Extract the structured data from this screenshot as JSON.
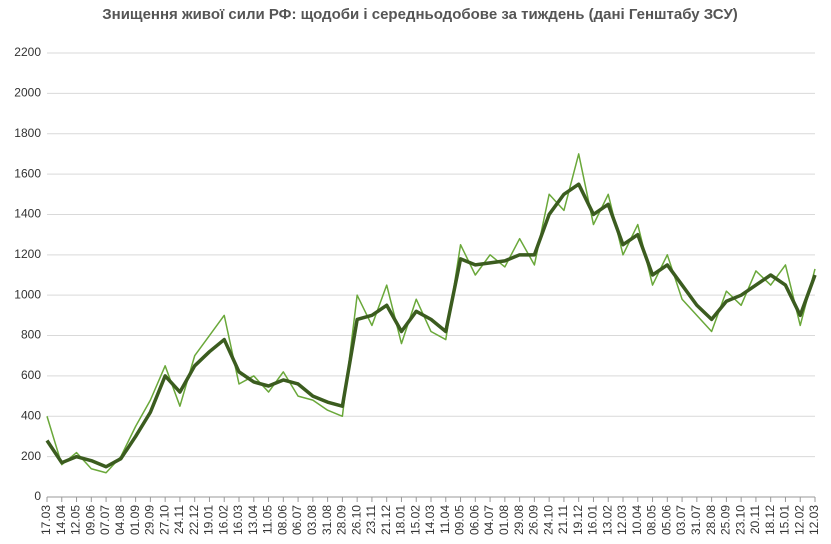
{
  "chart_data": {
    "type": "line",
    "title": "Знищення живої сили РФ: щодоби і середньодобове за тиждень (дані Генштабу ЗСУ)",
    "categories": [
      "17.03",
      "14.04",
      "12.05",
      "09.06",
      "07.07",
      "04.08",
      "01.09",
      "29.09",
      "27.10",
      "24.11",
      "22.12",
      "19.01",
      "16.02",
      "16.03",
      "13.04",
      "11.05",
      "08.06",
      "06.07",
      "03.08",
      "31.08",
      "28.09",
      "26.10",
      "23.11",
      "21.12",
      "18.01",
      "15.02",
      "14.03",
      "11.04",
      "09.05",
      "06.06",
      "04.07",
      "01.08",
      "29.08",
      "26.09",
      "24.10",
      "21.11",
      "19.12",
      "16.01",
      "13.02",
      "12.03",
      "10.04",
      "08.05",
      "05.06",
      "03.07",
      "31.07",
      "28.08",
      "25.09",
      "23.10",
      "20.11",
      "18.12",
      "15.01",
      "12.02",
      "12.03"
    ],
    "series": [
      {
        "color": "#6aa83a",
        "values": [
          400,
          160,
          220,
          140,
          120,
          200,
          350,
          480,
          650,
          450,
          700,
          800,
          900,
          560,
          600,
          520,
          620,
          500,
          480,
          430,
          400,
          1000,
          850,
          1050,
          760,
          980,
          820,
          780,
          1250,
          1100,
          1200,
          1140,
          1280,
          1150,
          1500,
          1420,
          1700,
          1350,
          1500,
          1200,
          1350,
          1050,
          1200,
          980,
          900,
          820,
          1020,
          950,
          1120,
          1050,
          1150,
          850,
          1130
        ]
      },
      {
        "color": "#3b5c1f",
        "values": [
          280,
          170,
          200,
          180,
          150,
          190,
          300,
          420,
          600,
          520,
          650,
          720,
          780,
          620,
          570,
          550,
          580,
          560,
          500,
          470,
          450,
          880,
          900,
          950,
          820,
          920,
          880,
          820,
          1180,
          1150,
          1160,
          1170,
          1200,
          1200,
          1400,
          1500,
          1550,
          1400,
          1450,
          1250,
          1300,
          1100,
          1150,
          1050,
          950,
          880,
          970,
          1000,
          1050,
          1100,
          1050,
          900,
          1100
        ]
      }
    ],
    "ylim": [
      0,
      2200
    ],
    "yticks": [
      0,
      200,
      400,
      600,
      800,
      1000,
      1200,
      1400,
      1600,
      1800,
      2000,
      2200
    ],
    "grid": true
  }
}
